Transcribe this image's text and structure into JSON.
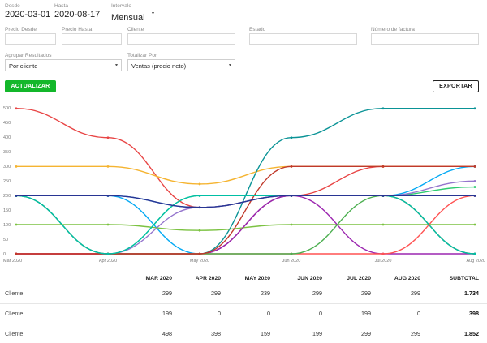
{
  "filters": {
    "desde_label": "Desde",
    "desde_value": "2020-03-01",
    "hasta_label": "Hasta",
    "hasta_value": "2020-08-17",
    "intervalo_label": "Intervalo",
    "intervalo_value": "Mensual",
    "precio_desde_placeholder": "Precio Desde",
    "precio_hasta_placeholder": "Precio Hasta",
    "cliente_placeholder": "Cliente",
    "estado_placeholder": "Estado",
    "factura_placeholder": "Número de factura",
    "agrupar_label": "Agrupar Resultados",
    "agrupar_value": "Por cliente",
    "totalizar_label": "Totalizar Por",
    "totalizar_value": "Ventas (precio neto)"
  },
  "actions": {
    "actualizar": "ACTUALIZAR",
    "exportar": "EXPORTAR"
  },
  "chart_data": {
    "type": "line",
    "categories": [
      "Mar 2020",
      "Apr 2020",
      "May 2020",
      "Jun 2020",
      "Jul 2020",
      "Aug 2020"
    ],
    "ylim": [
      0,
      500
    ],
    "yticks": [
      0,
      50,
      100,
      150,
      200,
      250,
      300,
      350,
      400,
      450,
      500
    ],
    "grid": false,
    "series": [
      {
        "color": "#e84545",
        "values": [
          498,
          398,
          159,
          199,
          299,
          299
        ]
      },
      {
        "color": "#f5b431",
        "values": [
          299,
          299,
          239,
          299,
          299,
          299
        ]
      },
      {
        "color": "#0a9396",
        "values": [
          0,
          0,
          0,
          398,
          498,
          498
        ]
      },
      {
        "color": "#1e88e5",
        "values": [
          199,
          199,
          159,
          199,
          199,
          199
        ]
      },
      {
        "color": "#03a9f4",
        "values": [
          199,
          199,
          0,
          199,
          199,
          299
        ]
      },
      {
        "color": "#7cc242",
        "values": [
          100,
          100,
          80,
          100,
          100,
          100
        ]
      },
      {
        "color": "#2ecc71",
        "values": [
          199,
          0,
          199,
          199,
          199,
          229
        ]
      },
      {
        "color": "#9575cd",
        "values": [
          199,
          0,
          159,
          199,
          199,
          249
        ]
      },
      {
        "color": "#e91e63",
        "values": [
          0,
          0,
          0,
          199,
          199,
          0
        ]
      },
      {
        "color": "#9c27b0",
        "values": [
          0,
          0,
          0,
          199,
          0,
          0
        ]
      },
      {
        "color": "#ff5252",
        "values": [
          0,
          0,
          0,
          0,
          0,
          199
        ]
      },
      {
        "color": "#4caf50",
        "values": [
          199,
          0,
          0,
          0,
          199,
          0
        ]
      },
      {
        "color": "#c0392b",
        "values": [
          0,
          0,
          0,
          299,
          299,
          299
        ]
      },
      {
        "color": "#00bfa5",
        "values": [
          199,
          0,
          199,
          199,
          199,
          0
        ]
      },
      {
        "color": "#283593",
        "values": [
          199,
          199,
          159,
          199,
          199,
          199
        ]
      }
    ]
  },
  "table": {
    "headers": [
      "MAR 2020",
      "APR 2020",
      "MAY 2020",
      "JUN 2020",
      "JUL 2020",
      "AUG 2020",
      "SUBTOTAL"
    ],
    "rows": [
      {
        "label": "Cliente",
        "values": [
          "299",
          "299",
          "239",
          "299",
          "299",
          "299"
        ],
        "subtotal": "1.734"
      },
      {
        "label": "Cliente",
        "values": [
          "199",
          "0",
          "0",
          "0",
          "199",
          "0"
        ],
        "subtotal": "398"
      },
      {
        "label": "Cliente",
        "values": [
          "498",
          "398",
          "159",
          "199",
          "299",
          "299"
        ],
        "subtotal": "1.852"
      }
    ]
  }
}
